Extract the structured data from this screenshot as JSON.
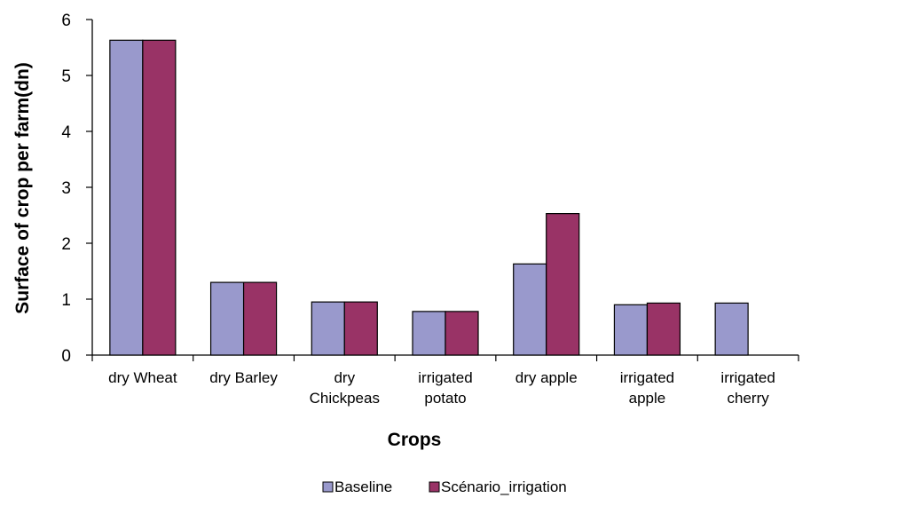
{
  "chart_data": {
    "type": "bar",
    "title": "",
    "xlabel": "Crops",
    "ylabel": "Surface of crop per farm(dn)",
    "ylim": [
      0,
      6
    ],
    "yticks": [
      0,
      1,
      2,
      3,
      4,
      5,
      6
    ],
    "grid": false,
    "legend_position": "bottom",
    "categories": [
      [
        "dry Wheat"
      ],
      [
        "dry Barley"
      ],
      [
        "dry",
        "Chickpeas"
      ],
      [
        "irrigated",
        "potato"
      ],
      [
        "dry apple"
      ],
      [
        "irrigated",
        "apple"
      ],
      [
        "irrigated",
        "cherry"
      ]
    ],
    "series": [
      {
        "name": "Baseline",
        "color": "#9999cc",
        "values": [
          5.63,
          1.3,
          0.95,
          0.78,
          1.63,
          0.9,
          0.93
        ]
      },
      {
        "name": "Scénario_irrigation",
        "color": "#993366",
        "values": [
          5.63,
          1.3,
          0.95,
          0.78,
          2.53,
          0.93,
          null
        ]
      }
    ]
  }
}
